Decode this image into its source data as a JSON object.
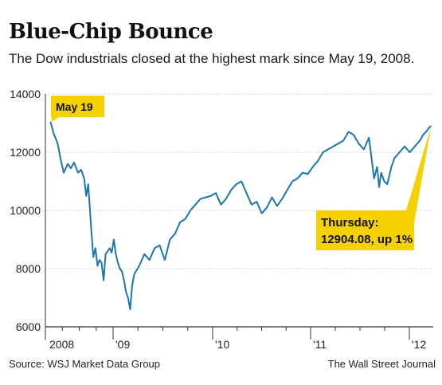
{
  "header": {
    "title": "Blue-Chip Bounce",
    "subtitle": "The Dow industrials closed at the highest mark since May 19, 2008."
  },
  "footer": {
    "source": "Source: WSJ Market Data Group",
    "credit": "The Wall Street Journal"
  },
  "colors": {
    "line": "#1a78ae",
    "callout": "#f5d100",
    "grid": "#c8c8c8",
    "axis": "#333333"
  },
  "chart_data": {
    "type": "line",
    "title": "Blue-Chip Bounce",
    "subtitle": "The Dow industrials closed at the highest mark since May 19, 2008.",
    "ylim": [
      6000,
      14000
    ],
    "yticks": [
      6000,
      8000,
      10000,
      12000,
      14000
    ],
    "ytick_labels": [
      "6000",
      "8000",
      "10000",
      "12000",
      "14000"
    ],
    "xlim": [
      2008.33,
      2012.13
    ],
    "xticks": [
      2008.0,
      2009.0,
      2010.0,
      2011.0,
      2012.0
    ],
    "xtick_labels": [
      "2008",
      "'09",
      "'10",
      "'11",
      "'12"
    ],
    "grid": true,
    "series": [
      {
        "x": [
          2008.38,
          2008.41,
          2008.45,
          2008.48,
          2008.51,
          2008.55,
          2008.58,
          2008.61,
          2008.65,
          2008.68,
          2008.71,
          2008.73,
          2008.75,
          2008.78,
          2008.8,
          2008.82,
          2008.84,
          2008.86,
          2008.88,
          2008.9,
          2008.92,
          2008.94,
          2008.96,
          2008.98,
          2009.0,
          2009.02,
          2009.04,
          2009.06,
          2009.08,
          2009.1,
          2009.12,
          2009.14,
          2009.16,
          2009.18,
          2009.2,
          2009.25,
          2009.3,
          2009.35,
          2009.4,
          2009.45,
          2009.5,
          2009.55,
          2009.6,
          2009.65,
          2009.7,
          2009.75,
          2009.8,
          2009.85,
          2009.9,
          2009.95,
          2010.0,
          2010.05,
          2010.1,
          2010.15,
          2010.2,
          2010.25,
          2010.3,
          2010.35,
          2010.4,
          2010.45,
          2010.5,
          2010.55,
          2010.6,
          2010.65,
          2010.7,
          2010.75,
          2010.8,
          2010.85,
          2010.9,
          2010.95,
          2011.0,
          2011.05,
          2011.1,
          2011.15,
          2011.2,
          2011.25,
          2011.3,
          2011.35,
          2011.4,
          2011.45,
          2011.5,
          2011.55,
          2011.58,
          2011.6,
          2011.62,
          2011.65,
          2011.68,
          2011.72,
          2011.75,
          2011.8,
          2011.85,
          2011.9,
          2011.95,
          2012.0,
          2012.03,
          2012.06,
          2012.09,
          2012.11
        ],
        "y": [
          13050,
          12650,
          12300,
          11750,
          11300,
          11600,
          11450,
          11650,
          11300,
          11400,
          11100,
          10500,
          10900,
          9300,
          8400,
          8700,
          8100,
          8300,
          8200,
          7600,
          8500,
          8600,
          8700,
          8550,
          9000,
          8500,
          8200,
          8000,
          7900,
          7600,
          7200,
          7000,
          6600,
          7400,
          7800,
          8100,
          8500,
          8300,
          8700,
          8800,
          8300,
          9000,
          9200,
          9600,
          9700,
          10000,
          10200,
          10400,
          10450,
          10500,
          10600,
          10200,
          10400,
          10700,
          10900,
          11000,
          10600,
          10200,
          10300,
          9900,
          10100,
          10450,
          10150,
          10400,
          10700,
          11000,
          11100,
          11300,
          11250,
          11500,
          11700,
          12000,
          12100,
          12200,
          12300,
          12400,
          12700,
          12600,
          12300,
          12100,
          12500,
          11100,
          11500,
          10800,
          11300,
          11000,
          10900,
          11500,
          11800,
          12000,
          12200,
          12000,
          12200,
          12400,
          12600,
          12700,
          12850,
          12904.08
        ]
      }
    ],
    "annotations": [
      {
        "text": "May 19"
      },
      {
        "text": "Thursday:"
      },
      {
        "text": "12904.08, up 1%"
      }
    ]
  }
}
